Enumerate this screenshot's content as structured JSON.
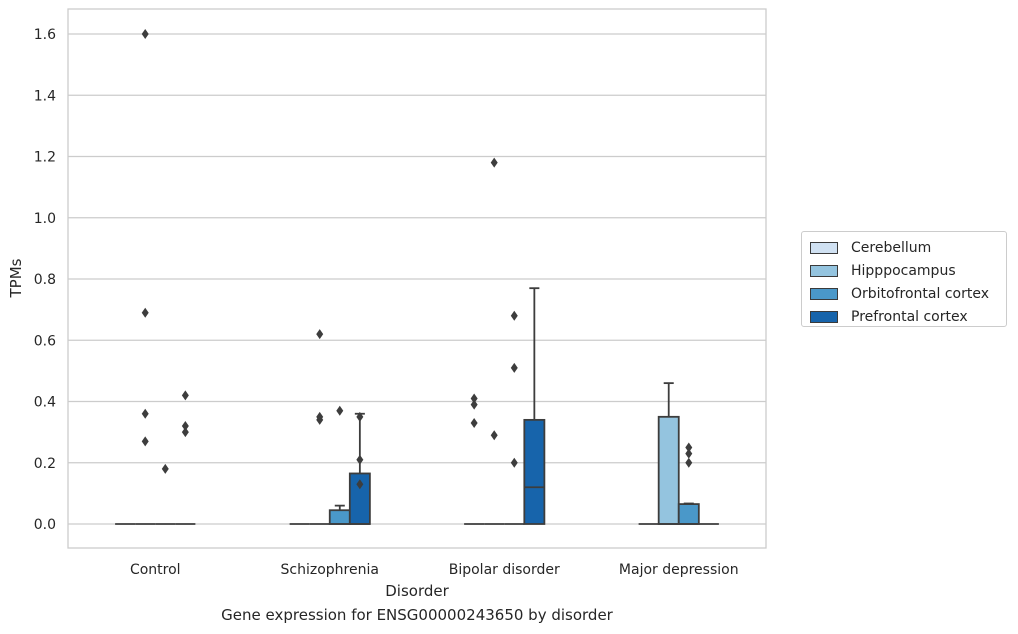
{
  "chart_data": {
    "type": "box",
    "xlabel": "Disorder",
    "ylabel": "TPMs",
    "caption": "Gene expression for ENSG00000243650 by disorder",
    "ylim": [
      -0.08,
      1.68
    ],
    "yticks": [
      "0.0",
      "0.2",
      "0.4",
      "0.6",
      "0.8",
      "1.0",
      "1.2",
      "1.4",
      "1.6"
    ],
    "ytick_values": [
      0.0,
      0.2,
      0.4,
      0.6,
      0.8,
      1.0,
      1.2,
      1.4,
      1.6
    ],
    "grid": true,
    "legend_position": "right",
    "categories": [
      "Control",
      "Schizophrenia",
      "Bipolar disorder",
      "Major depression"
    ],
    "series": [
      {
        "name": "Cerebellum",
        "color": "#d0e1f2",
        "boxes": [
          {
            "q1": 0,
            "median": 0,
            "q3": 0,
            "whisker_low": 0,
            "whisker_high": 0,
            "outliers": []
          },
          {
            "q1": 0,
            "median": 0,
            "q3": 0,
            "whisker_low": 0,
            "whisker_high": 0,
            "outliers": []
          },
          {
            "q1": 0,
            "median": 0,
            "q3": 0,
            "whisker_low": 0,
            "whisker_high": 0,
            "outliers": [
              0.33,
              0.39,
              0.41
            ]
          },
          {
            "q1": 0,
            "median": 0,
            "q3": 0,
            "whisker_low": 0,
            "whisker_high": 0,
            "outliers": []
          }
        ]
      },
      {
        "name": "Hipppocampus",
        "color": "#94c4df",
        "boxes": [
          {
            "q1": 0,
            "median": 0,
            "q3": 0,
            "whisker_low": 0,
            "whisker_high": 0,
            "outliers": [
              0.27,
              0.36,
              0.69,
              1.6
            ]
          },
          {
            "q1": 0,
            "median": 0,
            "q3": 0,
            "whisker_low": 0,
            "whisker_high": 0,
            "outliers": [
              0.34,
              0.35,
              0.62
            ]
          },
          {
            "q1": 0,
            "median": 0,
            "q3": 0,
            "whisker_low": 0,
            "whisker_high": 0,
            "outliers": [
              0.29,
              1.18
            ]
          },
          {
            "q1": 0,
            "median": 0,
            "q3": 0.35,
            "whisker_low": 0,
            "whisker_high": 0.46,
            "outliers": []
          }
        ]
      },
      {
        "name": "Orbitofrontal cortex",
        "color": "#4a98c9",
        "boxes": [
          {
            "q1": 0,
            "median": 0,
            "q3": 0,
            "whisker_low": 0,
            "whisker_high": 0,
            "outliers": [
              0.18
            ]
          },
          {
            "q1": 0,
            "median": 0,
            "q3": 0.045,
            "whisker_low": 0,
            "whisker_high": 0.06,
            "outliers": [
              0.37
            ]
          },
          {
            "q1": 0,
            "median": 0,
            "q3": 0,
            "whisker_low": 0,
            "whisker_high": 0,
            "outliers": [
              0.2,
              0.51,
              0.68
            ]
          },
          {
            "q1": 0,
            "median": 0,
            "q3": 0.065,
            "whisker_low": 0,
            "whisker_high": 0.067,
            "outliers": [
              0.2,
              0.23,
              0.25
            ]
          }
        ]
      },
      {
        "name": "Prefrontal cortex",
        "color": "#1764ab",
        "boxes": [
          {
            "q1": 0,
            "median": 0,
            "q3": 0,
            "whisker_low": 0,
            "whisker_high": 0,
            "outliers": [
              0.3,
              0.32,
              0.42
            ]
          },
          {
            "q1": 0,
            "median": 0,
            "q3": 0.165,
            "whisker_low": 0,
            "whisker_high": 0.36,
            "outliers": [
              0.13,
              0.21,
              0.35
            ]
          },
          {
            "q1": 0,
            "median": 0.12,
            "q3": 0.34,
            "whisker_low": 0,
            "whisker_high": 0.77,
            "outliers": []
          },
          {
            "q1": 0,
            "median": 0,
            "q3": 0,
            "whisker_low": 0,
            "whisker_high": 0,
            "outliers": []
          }
        ]
      }
    ]
  }
}
